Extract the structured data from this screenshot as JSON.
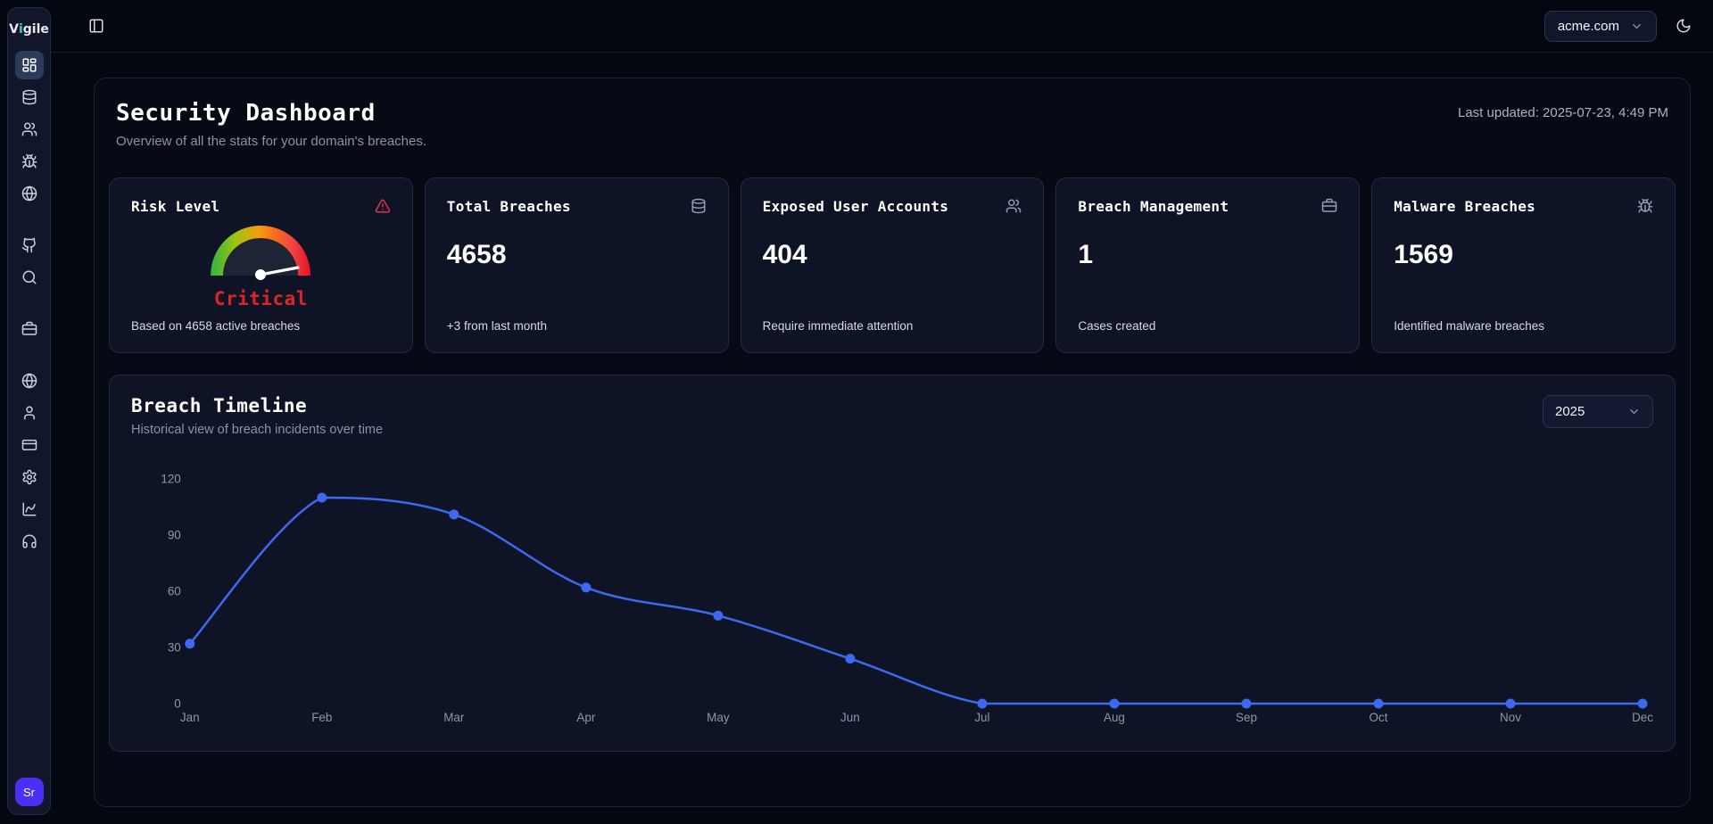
{
  "brand": {
    "name_prefix": "V",
    "name_accent": "i",
    "name_suffix": "gile",
    "accent_color": "#2dd4bf"
  },
  "topbar": {
    "domain_selector": {
      "label": "acme.com"
    }
  },
  "sidebar": {
    "groups": [
      {
        "items": [
          {
            "icon": "layout-dashboard",
            "name": "dashboard",
            "active": true
          },
          {
            "icon": "database",
            "name": "breaches"
          },
          {
            "icon": "users",
            "name": "exposed-users"
          },
          {
            "icon": "bug",
            "name": "malware"
          },
          {
            "icon": "globe",
            "name": "domains"
          }
        ]
      },
      {
        "items": [
          {
            "icon": "github",
            "name": "github"
          },
          {
            "icon": "search",
            "name": "search"
          }
        ]
      },
      {
        "items": [
          {
            "icon": "briefcase",
            "name": "cases"
          }
        ]
      },
      {
        "items": [
          {
            "icon": "globe",
            "name": "web"
          },
          {
            "icon": "user",
            "name": "account"
          },
          {
            "icon": "credit-card",
            "name": "billing"
          },
          {
            "icon": "settings",
            "name": "settings"
          },
          {
            "icon": "chart-line",
            "name": "analytics"
          },
          {
            "icon": "headphones",
            "name": "support"
          }
        ]
      }
    ],
    "avatar": {
      "initials": "Sr",
      "color": "#4a2ff5"
    }
  },
  "page": {
    "title": "Security Dashboard",
    "subtitle": "Overview of all the stats for your domain's breaches.",
    "last_updated": "Last updated: 2025-07-23, 4:49 PM"
  },
  "cards": [
    {
      "type": "gauge",
      "title": "Risk Level",
      "icon": "triangle-alert",
      "icon_color": "#e5304c",
      "gauge_label": "Critical",
      "gauge_label_color": "#dc2626",
      "footnote": "Based on 4658 active breaches"
    },
    {
      "type": "stat",
      "title": "Total Breaches",
      "icon": "database",
      "value": "4658",
      "footnote": "+3 from last month"
    },
    {
      "type": "stat",
      "title": "Exposed User Accounts",
      "icon": "users",
      "value": "404",
      "footnote": "Require immediate attention"
    },
    {
      "type": "stat",
      "title": "Breach Management",
      "icon": "briefcase",
      "value": "1",
      "footnote": "Cases created"
    },
    {
      "type": "stat",
      "title": "Malware Breaches",
      "icon": "bug",
      "value": "1569",
      "footnote": "Identified malware breaches"
    }
  ],
  "timeline": {
    "title": "Breach Timeline",
    "subtitle": "Historical view of breach incidents over time",
    "year_selector": "2025"
  },
  "chart_data": {
    "type": "line",
    "title": "Breach Timeline",
    "x": [
      "Jan",
      "Feb",
      "Mar",
      "Apr",
      "May",
      "Jun",
      "Jul",
      "Aug",
      "Sep",
      "Oct",
      "Nov",
      "Dec"
    ],
    "values": [
      32,
      110,
      101,
      62,
      47,
      24,
      0,
      0,
      0,
      0,
      0,
      0
    ],
    "yticks": [
      0,
      30,
      60,
      90,
      120
    ],
    "ylim": [
      0,
      120
    ],
    "xlabel": "",
    "ylabel": "",
    "grid": false,
    "legend": false,
    "line_color": "#3e68f0",
    "tick_color": "#8f96a8"
  }
}
